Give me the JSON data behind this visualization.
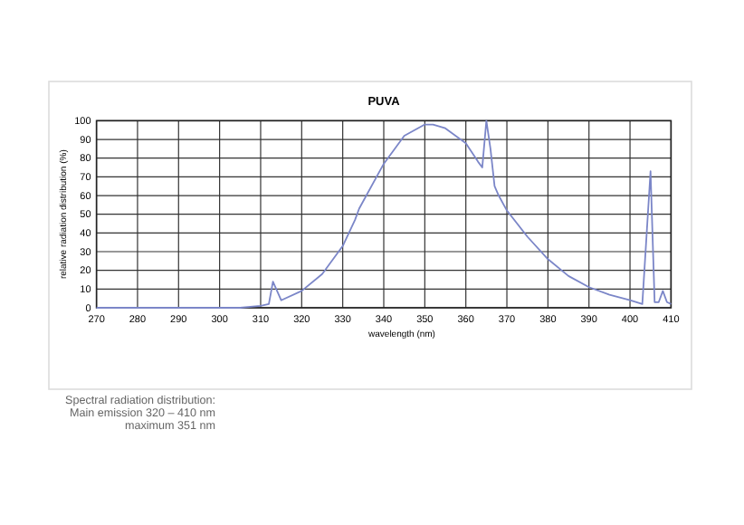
{
  "chart_data": {
    "type": "line",
    "title": "PUVA",
    "xlabel": "wavelength (nm)",
    "ylabel": "relative radiation distribution (%)",
    "annotations": [
      "Spectral radiation distribution:",
      "Main emission 320 – 410 nm",
      "maximum 351 nm"
    ],
    "xlim": [
      270,
      410
    ],
    "xticks": [
      270,
      280,
      290,
      300,
      310,
      320,
      330,
      340,
      350,
      360,
      370,
      380,
      390,
      400,
      410
    ],
    "ylim": [
      0,
      100
    ],
    "yticks": [
      0,
      10,
      20,
      30,
      40,
      50,
      60,
      70,
      80,
      90,
      100
    ],
    "grid": true,
    "series": [
      {
        "color": "#7b86c8",
        "x": [
          270,
          300,
          305,
          310,
          312,
          313,
          315,
          320,
          325,
          330,
          333,
          334,
          340,
          345,
          350,
          352,
          355,
          360,
          363,
          364,
          365,
          366,
          367,
          368,
          370,
          375,
          380,
          385,
          390,
          395,
          400,
          403,
          405,
          406,
          407,
          408,
          409,
          410
        ],
        "values": [
          0,
          0,
          0,
          1,
          2,
          14,
          4,
          9,
          18,
          33,
          47,
          53,
          77,
          92,
          98,
          98,
          96,
          88,
          78,
          75,
          100,
          85,
          65,
          60,
          52,
          38,
          26,
          17,
          11,
          7,
          4,
          2,
          73,
          3,
          3,
          9,
          3,
          2
        ]
      }
    ]
  }
}
